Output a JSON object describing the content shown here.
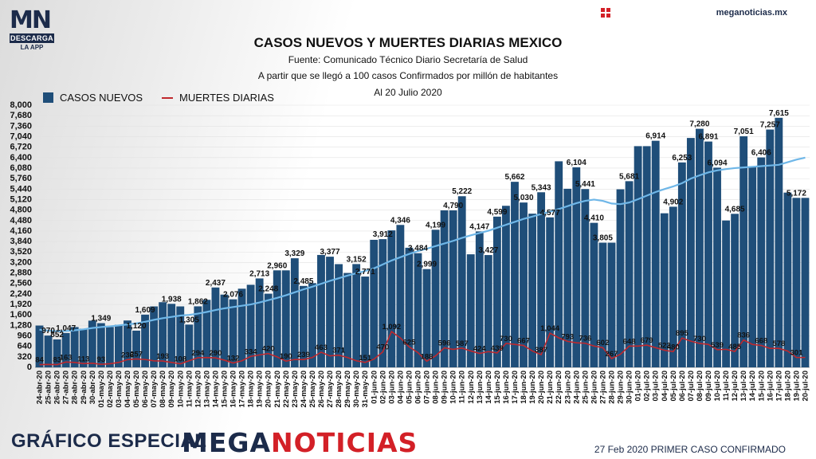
{
  "header": {
    "logo_text": "MN",
    "logo_bar": "DESCARGA",
    "logo_sub": "LA APP",
    "site": "meganoticias.mx"
  },
  "footer": {
    "left": "GRÁFICO ESPECIAL",
    "brand_a": "MEGA",
    "brand_b": "NOTICIAS",
    "right": "27 Feb 2020 PRIMER CASO CONFIRMADO"
  },
  "chart_data": {
    "type": "bar",
    "title": "CASOS NUEVOS Y MUERTES DIARIAS MEXICO",
    "subtitle_lines": [
      "Fuente: Comunicado Técnico Diario Secretaría de Salud",
      "A partir que se llegó a 100 casos Confirmados por millón de habitantes",
      "Al 20 Julio 2020"
    ],
    "legend": [
      "CASOS NUEVOS",
      "MUERTES DIARIAS"
    ],
    "legend_placement": "top-left",
    "ylim": [
      0,
      8000
    ],
    "yticks": [
      0,
      320,
      640,
      960,
      1280,
      1600,
      1920,
      2240,
      2560,
      2880,
      3200,
      3520,
      3840,
      4160,
      4480,
      4800,
      5120,
      5440,
      5760,
      6080,
      6400,
      6720,
      7040,
      7360,
      7680,
      8000
    ],
    "ytick_labels": [
      "0",
      "320",
      "640",
      "960",
      "1,280",
      "1,600",
      "1,920",
      "2,240",
      "2,560",
      "2,880",
      "3,200",
      "3,520",
      "3,840",
      "4,160",
      "4,480",
      "4,800",
      "5,120",
      "5,440",
      "5,760",
      "6,080",
      "6,400",
      "6,720",
      "7,040",
      "7,360",
      "7,680",
      "8,000"
    ],
    "categories": [
      "24-abr-20",
      "25-abr-20",
      "26-abr-20",
      "27-abr-20",
      "28-abr-20",
      "29-abr-20",
      "30-abr-20",
      "01-may-20",
      "02-may-20",
      "03-may-20",
      "04-may-20",
      "05-may-20",
      "06-may-20",
      "07-may-20",
      "08-may-20",
      "09-may-20",
      "10-may-20",
      "11-may-20",
      "12-may-20",
      "13-may-20",
      "14-may-20",
      "15-may-20",
      "16-may-20",
      "17-may-20",
      "18-may-20",
      "19-may-20",
      "20-may-20",
      "21-may-20",
      "22-may-20",
      "23-may-20",
      "24-may-20",
      "25-may-20",
      "26-may-20",
      "27-may-20",
      "28-may-20",
      "29-may-20",
      "30-may-20",
      "31-may-20",
      "01-jun-20",
      "02-jun-20",
      "03-jun-20",
      "04-jun-20",
      "05-jun-20",
      "06-jun-20",
      "07-jun-20",
      "08-jun-20",
      "09-jun-20",
      "10-jun-20",
      "11-jun-20",
      "12-jun-20",
      "13-jun-20",
      "14-jun-20",
      "15-jun-20",
      "16-jun-20",
      "17-jun-20",
      "18-jun-20",
      "19-jun-20",
      "20-jun-20",
      "21-jun-20",
      "22-jun-20",
      "23-jun-20",
      "24-jun-20",
      "25-jun-20",
      "26-jun-20",
      "27-jun-20",
      "28-jun-20",
      "29-jun-20",
      "30-jun-20",
      "01-jul-20",
      "02-jul-20",
      "03-jul-20",
      "04-jul-20",
      "05-jul-20",
      "06-jul-20",
      "07-jul-20",
      "08-jul-20",
      "09-jul-20",
      "10-jul-20",
      "11-jul-20",
      "12-jul-20",
      "13-jul-20",
      "14-jul-20",
      "15-jul-20",
      "16-jul-20",
      "17-jul-20",
      "18-jul-20",
      "19-jul-20",
      "20-jul-20"
    ],
    "series": [
      {
        "name": "CASOS NUEVOS",
        "color": "#1f4e79",
        "values": [
          1276,
          970,
          852,
          1047,
          1230,
          1180,
          1425,
          1349,
          1230,
          1300,
          1430,
          1120,
          1609,
          1860,
          1988,
          1938,
          1860,
          1305,
          1862,
          2060,
          2437,
          2220,
          2076,
          2400,
          2520,
          2713,
          2248,
          2960,
          2960,
          3329,
          2485,
          2570,
          3430,
          3377,
          3150,
          2880,
          3152,
          2771,
          3892,
          3912,
          4180,
          4346,
          3650,
          3484,
          2999,
          4199,
          4790,
          4790,
          5222,
          3450,
          4147,
          3427,
          4599,
          4930,
          5662,
          5030,
          4690,
          5343,
          4577,
          6288,
          5450,
          6104,
          5441,
          4410,
          3805,
          3805,
          5433,
          5681,
          6750,
          6750,
          6914,
          4702,
          4902,
          6253,
          7000,
          7280,
          6891,
          6094,
          4482,
          4685,
          7051,
          6110,
          6406,
          7257,
          7615,
          5333,
          5172,
          5172
        ],
        "data_labels": {
          "1": "970",
          "2": "852",
          "3": "1,047",
          "7": "1,349",
          "11": "1,120",
          "12": "1,609",
          "15": "1,938",
          "17": "1,305",
          "18": "1,862",
          "20": "2,437",
          "22": "2,076",
          "25": "2,713",
          "26": "2,248",
          "27": "2,960",
          "29": "3,329",
          "30": "2,485",
          "33": "3,377",
          "36": "3,152",
          "37": "2,771",
          "39": "3,912",
          "41": "4,346",
          "43": "3,484",
          "44": "2,999",
          "45": "4,199",
          "47": "4,790",
          "48": "5,222",
          "50": "4,147",
          "51": "3,427",
          "52": "4,599",
          "54": "5,662",
          "55": "5,030",
          "57": "5,343",
          "58": "4,577",
          "61": "6,104",
          "62": "5,441",
          "63": "4,410",
          "64": "3,805",
          "67": "5,681",
          "70": "6,914",
          "72": "4,902",
          "73": "6,253",
          "75": "7,280",
          "76": "6,891",
          "77": "6,094",
          "79": "4,685",
          "80": "7,051",
          "82": "6,406",
          "83": "7,257",
          "84": "7,615",
          "86": "5,172"
        }
      },
      {
        "name": "MUERTES DIARIAS",
        "color": "#c0282d",
        "values": [
          84,
          90,
          83,
          163,
          150,
          113,
          125,
          93,
          110,
          150,
          236,
          257,
          240,
          200,
          193,
          150,
          108,
          200,
          294,
          300,
          290,
          220,
          132,
          200,
          334,
          380,
          420,
          320,
          190,
          240,
          239,
          300,
          463,
          350,
          371,
          300,
          200,
          151,
          250,
          470,
          1092,
          900,
          625,
          450,
          188,
          350,
          596,
          550,
          587,
          500,
          424,
          480,
          439,
          730,
          700,
          667,
          500,
          387,
          1044,
          900,
          793,
          750,
          736,
          650,
          602,
          267,
          400,
          648,
          650,
          679,
          600,
          523,
          480,
          895,
          800,
          730,
          700,
          539,
          550,
          485,
          836,
          700,
          668,
          580,
          578,
          500,
          301,
          301
        ],
        "data_labels": {
          "0": "84",
          "2": "83",
          "3": "163",
          "5": "113",
          "7": "93",
          "10": "236",
          "11": "257",
          "14": "193",
          "16": "108",
          "18": "294",
          "20": "290",
          "22": "132",
          "24": "334",
          "26": "420",
          "28": "190",
          "30": "239",
          "32": "463",
          "34": "371",
          "37": "151",
          "39": "470",
          "40": "1,092",
          "42": "625",
          "44": "188",
          "46": "596",
          "48": "587",
          "50": "424",
          "52": "439",
          "53": "730",
          "55": "667",
          "57": "387",
          "58": "1,044",
          "60": "793",
          "62": "736",
          "64": "602",
          "65": "267",
          "67": "648",
          "69": "679",
          "71": "523",
          "72": "480",
          "73": "895",
          "75": "730",
          "77": "539",
          "79": "485",
          "80": "836",
          "82": "668",
          "84": "578",
          "86": "301"
        }
      },
      {
        "color": "#6fb7e8",
        "values": [
          1150,
          1120,
          1100,
          1110,
          1130,
          1160,
          1200,
          1230,
          1250,
          1280,
          1310,
          1340,
          1390,
          1450,
          1500,
          1540,
          1580,
          1600,
          1640,
          1690,
          1750,
          1800,
          1840,
          1880,
          1920,
          1980,
          2050,
          2120,
          2200,
          2290,
          2380,
          2460,
          2550,
          2640,
          2720,
          2800,
          2870,
          2940,
          3020,
          3140,
          3260,
          3360,
          3460,
          3550,
          3620,
          3700,
          3780,
          3860,
          3950,
          4030,
          4100,
          4170,
          4260,
          4350,
          4440,
          4530,
          4600,
          4680,
          4750,
          4830,
          4920,
          5010,
          5080,
          5120,
          5080,
          5000,
          4980,
          5030,
          5130,
          5240,
          5350,
          5440,
          5520,
          5620,
          5760,
          5860,
          5950,
          6010,
          6050,
          6080,
          6100,
          6120,
          6140,
          6160,
          6180,
          6260,
          6340,
          6400
        ]
      }
    ]
  }
}
